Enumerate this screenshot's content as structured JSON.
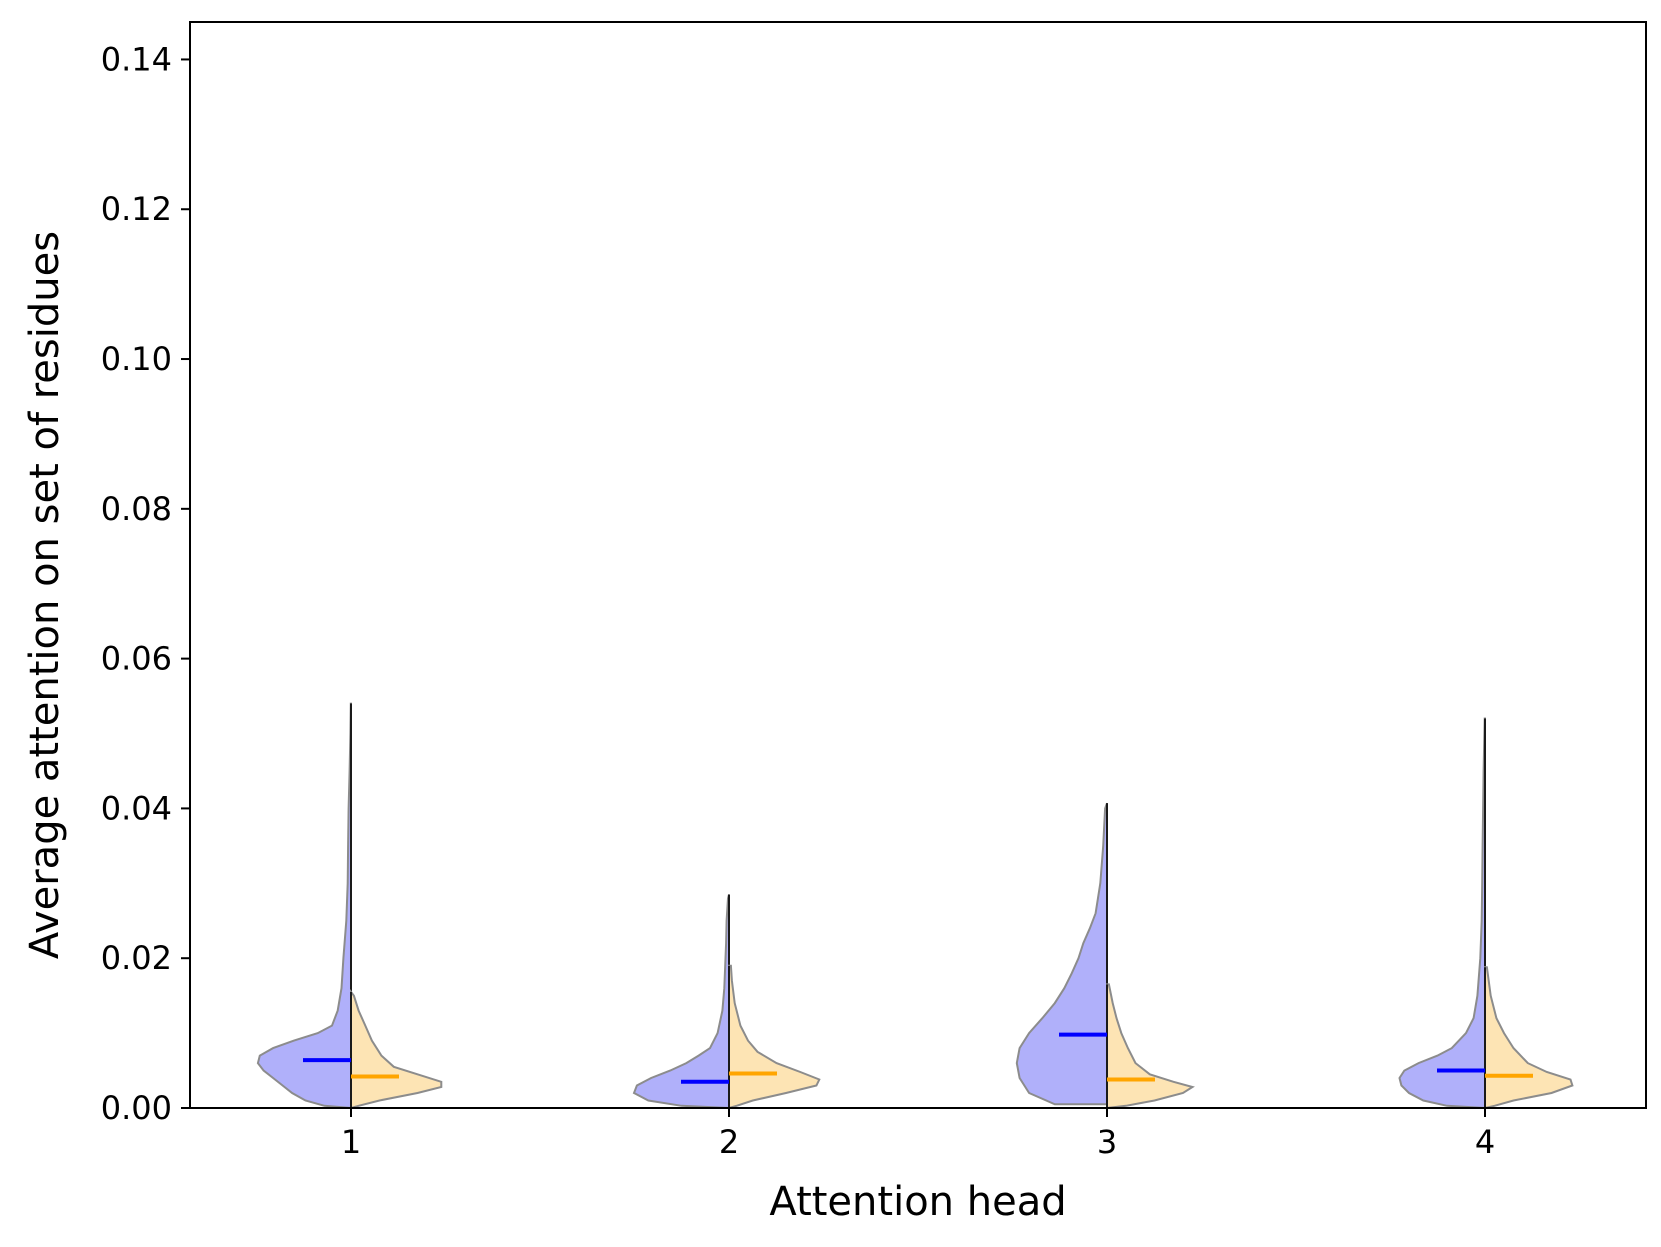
{
  "chart_data": {
    "type": "violin",
    "xlabel": "Attention head",
    "ylabel": "Average attention on set of residues",
    "ylim": [
      0,
      0.145
    ],
    "yticks": [
      "0.00",
      "0.02",
      "0.04",
      "0.06",
      "0.08",
      "0.10",
      "0.12",
      "0.14"
    ],
    "ytick_values": [
      0,
      0.02,
      0.04,
      0.06,
      0.08,
      0.1,
      0.12,
      0.14
    ],
    "categories": [
      "1",
      "2",
      "3",
      "4"
    ],
    "grid": false,
    "legend": "none",
    "series": [
      {
        "side": "left",
        "color": "#0000ff",
        "fill": "#b0b0fa",
        "heads": [
          {
            "head": "1",
            "mean": 0.0064,
            "min": 0.0,
            "max": 0.054,
            "profile": [
              [
                0.0003,
                0.28
              ],
              [
                0.001,
                0.48
              ],
              [
                0.002,
                0.62
              ],
              [
                0.003,
                0.72
              ],
              [
                0.004,
                0.82
              ],
              [
                0.005,
                0.92
              ],
              [
                0.006,
                0.98
              ],
              [
                0.007,
                0.96
              ],
              [
                0.008,
                0.82
              ],
              [
                0.009,
                0.6
              ],
              [
                0.01,
                0.35
              ],
              [
                0.011,
                0.2
              ],
              [
                0.013,
                0.14
              ],
              [
                0.016,
                0.1
              ],
              [
                0.02,
                0.08
              ],
              [
                0.025,
                0.05
              ],
              [
                0.03,
                0.035
              ],
              [
                0.035,
                0.03
              ],
              [
                0.04,
                0.025
              ],
              [
                0.045,
                0.015
              ],
              [
                0.05,
                0.006
              ],
              [
                0.054,
                0.002
              ]
            ]
          },
          {
            "head": "2",
            "mean": 0.0035,
            "min": 0.0,
            "max": 0.0285,
            "profile": [
              [
                0.0003,
                0.5
              ],
              [
                0.001,
                0.85
              ],
              [
                0.002,
                1.0
              ],
              [
                0.003,
                0.97
              ],
              [
                0.004,
                0.82
              ],
              [
                0.005,
                0.62
              ],
              [
                0.006,
                0.45
              ],
              [
                0.007,
                0.32
              ],
              [
                0.008,
                0.2
              ],
              [
                0.01,
                0.12
              ],
              [
                0.013,
                0.07
              ],
              [
                0.016,
                0.05
              ],
              [
                0.019,
                0.04
              ],
              [
                0.022,
                0.03
              ],
              [
                0.025,
                0.025
              ],
              [
                0.028,
                0.01
              ]
            ]
          },
          {
            "head": "3",
            "mean": 0.0098,
            "min": 0.0005,
            "max": 0.0407,
            "profile": [
              [
                0.0005,
                0.55
              ],
              [
                0.002,
                0.82
              ],
              [
                0.004,
                0.92
              ],
              [
                0.006,
                0.95
              ],
              [
                0.008,
                0.92
              ],
              [
                0.01,
                0.82
              ],
              [
                0.012,
                0.68
              ],
              [
                0.014,
                0.55
              ],
              [
                0.016,
                0.45
              ],
              [
                0.018,
                0.37
              ],
              [
                0.02,
                0.3
              ],
              [
                0.022,
                0.25
              ],
              [
                0.024,
                0.18
              ],
              [
                0.026,
                0.12
              ],
              [
                0.03,
                0.07
              ],
              [
                0.035,
                0.04
              ],
              [
                0.04,
                0.02
              ]
            ]
          },
          {
            "head": "4",
            "mean": 0.005,
            "min": 0.0,
            "max": 0.052,
            "profile": [
              [
                0.0003,
                0.4
              ],
              [
                0.001,
                0.65
              ],
              [
                0.002,
                0.8
              ],
              [
                0.003,
                0.88
              ],
              [
                0.004,
                0.9
              ],
              [
                0.005,
                0.85
              ],
              [
                0.006,
                0.7
              ],
              [
                0.007,
                0.5
              ],
              [
                0.008,
                0.35
              ],
              [
                0.01,
                0.2
              ],
              [
                0.012,
                0.12
              ],
              [
                0.015,
                0.08
              ],
              [
                0.02,
                0.05
              ],
              [
                0.025,
                0.035
              ],
              [
                0.03,
                0.03
              ],
              [
                0.035,
                0.025
              ],
              [
                0.04,
                0.02
              ],
              [
                0.045,
                0.015
              ],
              [
                0.052,
                0.003
              ]
            ]
          }
        ]
      },
      {
        "side": "right",
        "color": "#ffa500",
        "fill": "#fde4b4",
        "heads": [
          {
            "head": "1",
            "mean": 0.0042,
            "min": 0.0,
            "max": 0.0155,
            "profile": [
              [
                0.0003,
                0.08
              ],
              [
                0.001,
                0.3
              ],
              [
                0.002,
                0.7
              ],
              [
                0.0028,
                0.95
              ],
              [
                0.0035,
                0.95
              ],
              [
                0.0045,
                0.7
              ],
              [
                0.0055,
                0.45
              ],
              [
                0.007,
                0.32
              ],
              [
                0.009,
                0.22
              ],
              [
                0.011,
                0.15
              ],
              [
                0.013,
                0.08
              ],
              [
                0.015,
                0.03
              ]
            ]
          },
          {
            "head": "2",
            "mean": 0.0046,
            "min": 0.0,
            "max": 0.019,
            "profile": [
              [
                0.0003,
                0.08
              ],
              [
                0.001,
                0.25
              ],
              [
                0.002,
                0.6
              ],
              [
                0.003,
                0.92
              ],
              [
                0.0038,
                0.95
              ],
              [
                0.0048,
                0.75
              ],
              [
                0.006,
                0.5
              ],
              [
                0.0075,
                0.3
              ],
              [
                0.009,
                0.2
              ],
              [
                0.011,
                0.12
              ],
              [
                0.014,
                0.06
              ],
              [
                0.017,
                0.03
              ],
              [
                0.019,
                0.02
              ]
            ]
          },
          {
            "head": "3",
            "mean": 0.0038,
            "min": 0.0,
            "max": 0.0165,
            "profile": [
              [
                0.0003,
                0.2
              ],
              [
                0.001,
                0.5
              ],
              [
                0.002,
                0.8
              ],
              [
                0.0028,
                0.9
              ],
              [
                0.0035,
                0.7
              ],
              [
                0.0045,
                0.45
              ],
              [
                0.006,
                0.3
              ],
              [
                0.008,
                0.22
              ],
              [
                0.01,
                0.15
              ],
              [
                0.012,
                0.1
              ],
              [
                0.014,
                0.06
              ],
              [
                0.0165,
                0.02
              ]
            ]
          },
          {
            "head": "4",
            "mean": 0.0043,
            "min": 0.0,
            "max": 0.0188,
            "profile": [
              [
                0.0003,
                0.1
              ],
              [
                0.001,
                0.3
              ],
              [
                0.002,
                0.7
              ],
              [
                0.003,
                0.92
              ],
              [
                0.0038,
                0.9
              ],
              [
                0.0048,
                0.65
              ],
              [
                0.006,
                0.45
              ],
              [
                0.008,
                0.3
              ],
              [
                0.01,
                0.2
              ],
              [
                0.012,
                0.12
              ],
              [
                0.015,
                0.06
              ],
              [
                0.0188,
                0.02
              ]
            ]
          }
        ]
      }
    ]
  }
}
